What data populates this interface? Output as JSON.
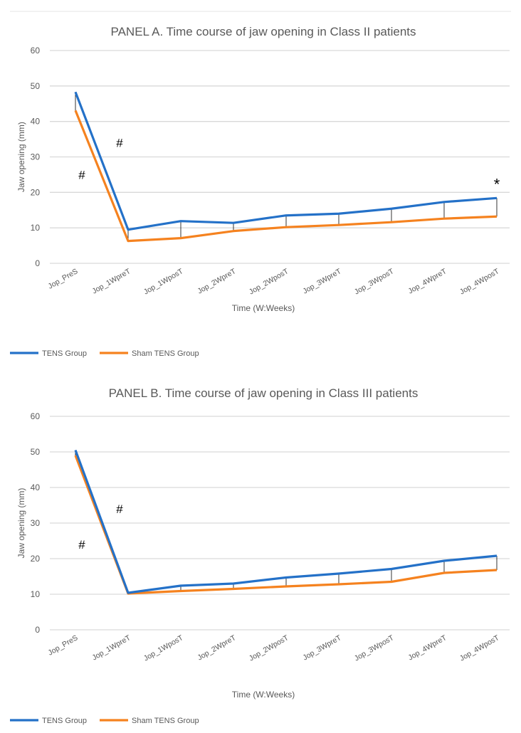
{
  "colors": {
    "tens": "#2471c8",
    "sham": "#f5821f",
    "grid": "#d9d9d9",
    "text": "#595959",
    "connector": "#000000"
  },
  "chart_data": [
    {
      "type": "line",
      "title": "PANEL A. Time course of jaw opening in Class II patients",
      "xlabel": "Time (W:Weeks)",
      "ylabel": "Jaw opening (mm)",
      "ylim": [
        0,
        60
      ],
      "yticks": [
        0,
        10,
        20,
        30,
        40,
        50,
        60
      ],
      "grid": true,
      "legend": "bottom-left",
      "categories": [
        "Jop_PreS",
        "Jop_1WpreT",
        "Jop_1WposT",
        "Jop_2WpreT",
        "Jop_2WposT",
        "Jop_3WpreT",
        "Jop_3WposT",
        "Jop_4WpreT",
        "Jop_4WposT"
      ],
      "series": [
        {
          "name": "TENS Group",
          "color": "#2471c8",
          "values": [
            48.3,
            9.5,
            11.9,
            11.4,
            13.5,
            14.0,
            15.4,
            17.3,
            18.4
          ]
        },
        {
          "name": "Sham TENS Group",
          "color": "#f5821f",
          "values": [
            43.1,
            6.3,
            7.1,
            9.1,
            10.2,
            10.8,
            11.6,
            12.6,
            13.2
          ]
        }
      ],
      "annotations": [
        {
          "text": "#",
          "x": "Jop_PreS",
          "y": 25
        },
        {
          "text": "#",
          "x": "Jop_1WpreT",
          "y": 34
        },
        {
          "text": "*",
          "x": "Jop_4WposT",
          "y": 22
        }
      ]
    },
    {
      "type": "line",
      "title": "PANEL B. Time course of jaw opening in Class III patients",
      "xlabel": "Time (W:Weeks)",
      "ylabel": "Jaw opening (mm)",
      "ylim": [
        0,
        60
      ],
      "yticks": [
        0,
        10,
        20,
        30,
        40,
        50,
        60
      ],
      "grid": true,
      "legend": "bottom-left",
      "categories": [
        "Jop_PreS",
        "Jop_1WpreT",
        "Jop_1WposT",
        "Jop_2WpreT",
        "Jop_2WposT",
        "Jop_3WpreT",
        "Jop_3WposT",
        "Jop_4WpreT",
        "Jop_4WposT"
      ],
      "series": [
        {
          "name": "TENS Group",
          "color": "#2471c8",
          "values": [
            50.5,
            10.4,
            12.4,
            13.0,
            14.7,
            15.8,
            17.1,
            19.4,
            20.8
          ]
        },
        {
          "name": "Sham TENS Group",
          "color": "#f5821f",
          "values": [
            49.0,
            10.2,
            10.9,
            11.5,
            12.2,
            12.8,
            13.5,
            16.0,
            16.8
          ]
        }
      ],
      "annotations": [
        {
          "text": "#",
          "x": "Jop_PreS",
          "y": 24
        },
        {
          "text": "#",
          "x": "Jop_1WpreT",
          "y": 34
        }
      ]
    }
  ]
}
